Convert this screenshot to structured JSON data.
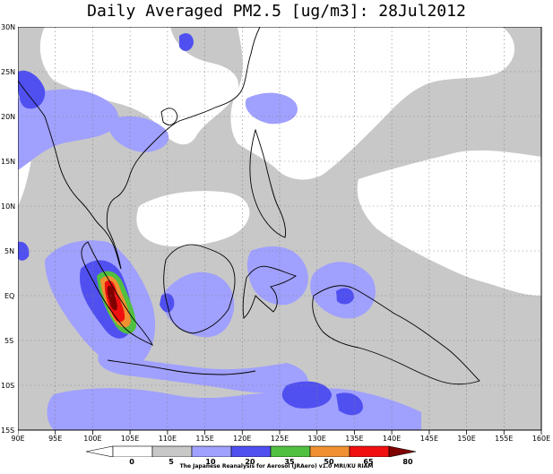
{
  "title": "Daily Averaged PM2.5 [ug/m3]: 28Jul2012",
  "lat_labels": [
    "30N",
    "25N",
    "20N",
    "15N",
    "10N",
    "5N",
    "EQ",
    "5S",
    "10S",
    "15S"
  ],
  "lon_labels": [
    "90E",
    "95E",
    "100E",
    "105E",
    "110E",
    "115E",
    "120E",
    "125E",
    "130E",
    "135E",
    "140E",
    "145E",
    "150E",
    "155E",
    "160E"
  ],
  "colorbar": {
    "levels": [
      "0",
      "5",
      "10",
      "20",
      "35",
      "50",
      "65",
      "80"
    ],
    "colors": [
      "#ffffff",
      "#c8c8c8",
      "#a0a0ff",
      "#5050f0",
      "#50c040",
      "#f09030",
      "#f01010",
      "#800000"
    ]
  },
  "credit": "The Japanese Reanalysis for Aerosol (JRAero) v1.0 MRI/KU RIAM"
}
